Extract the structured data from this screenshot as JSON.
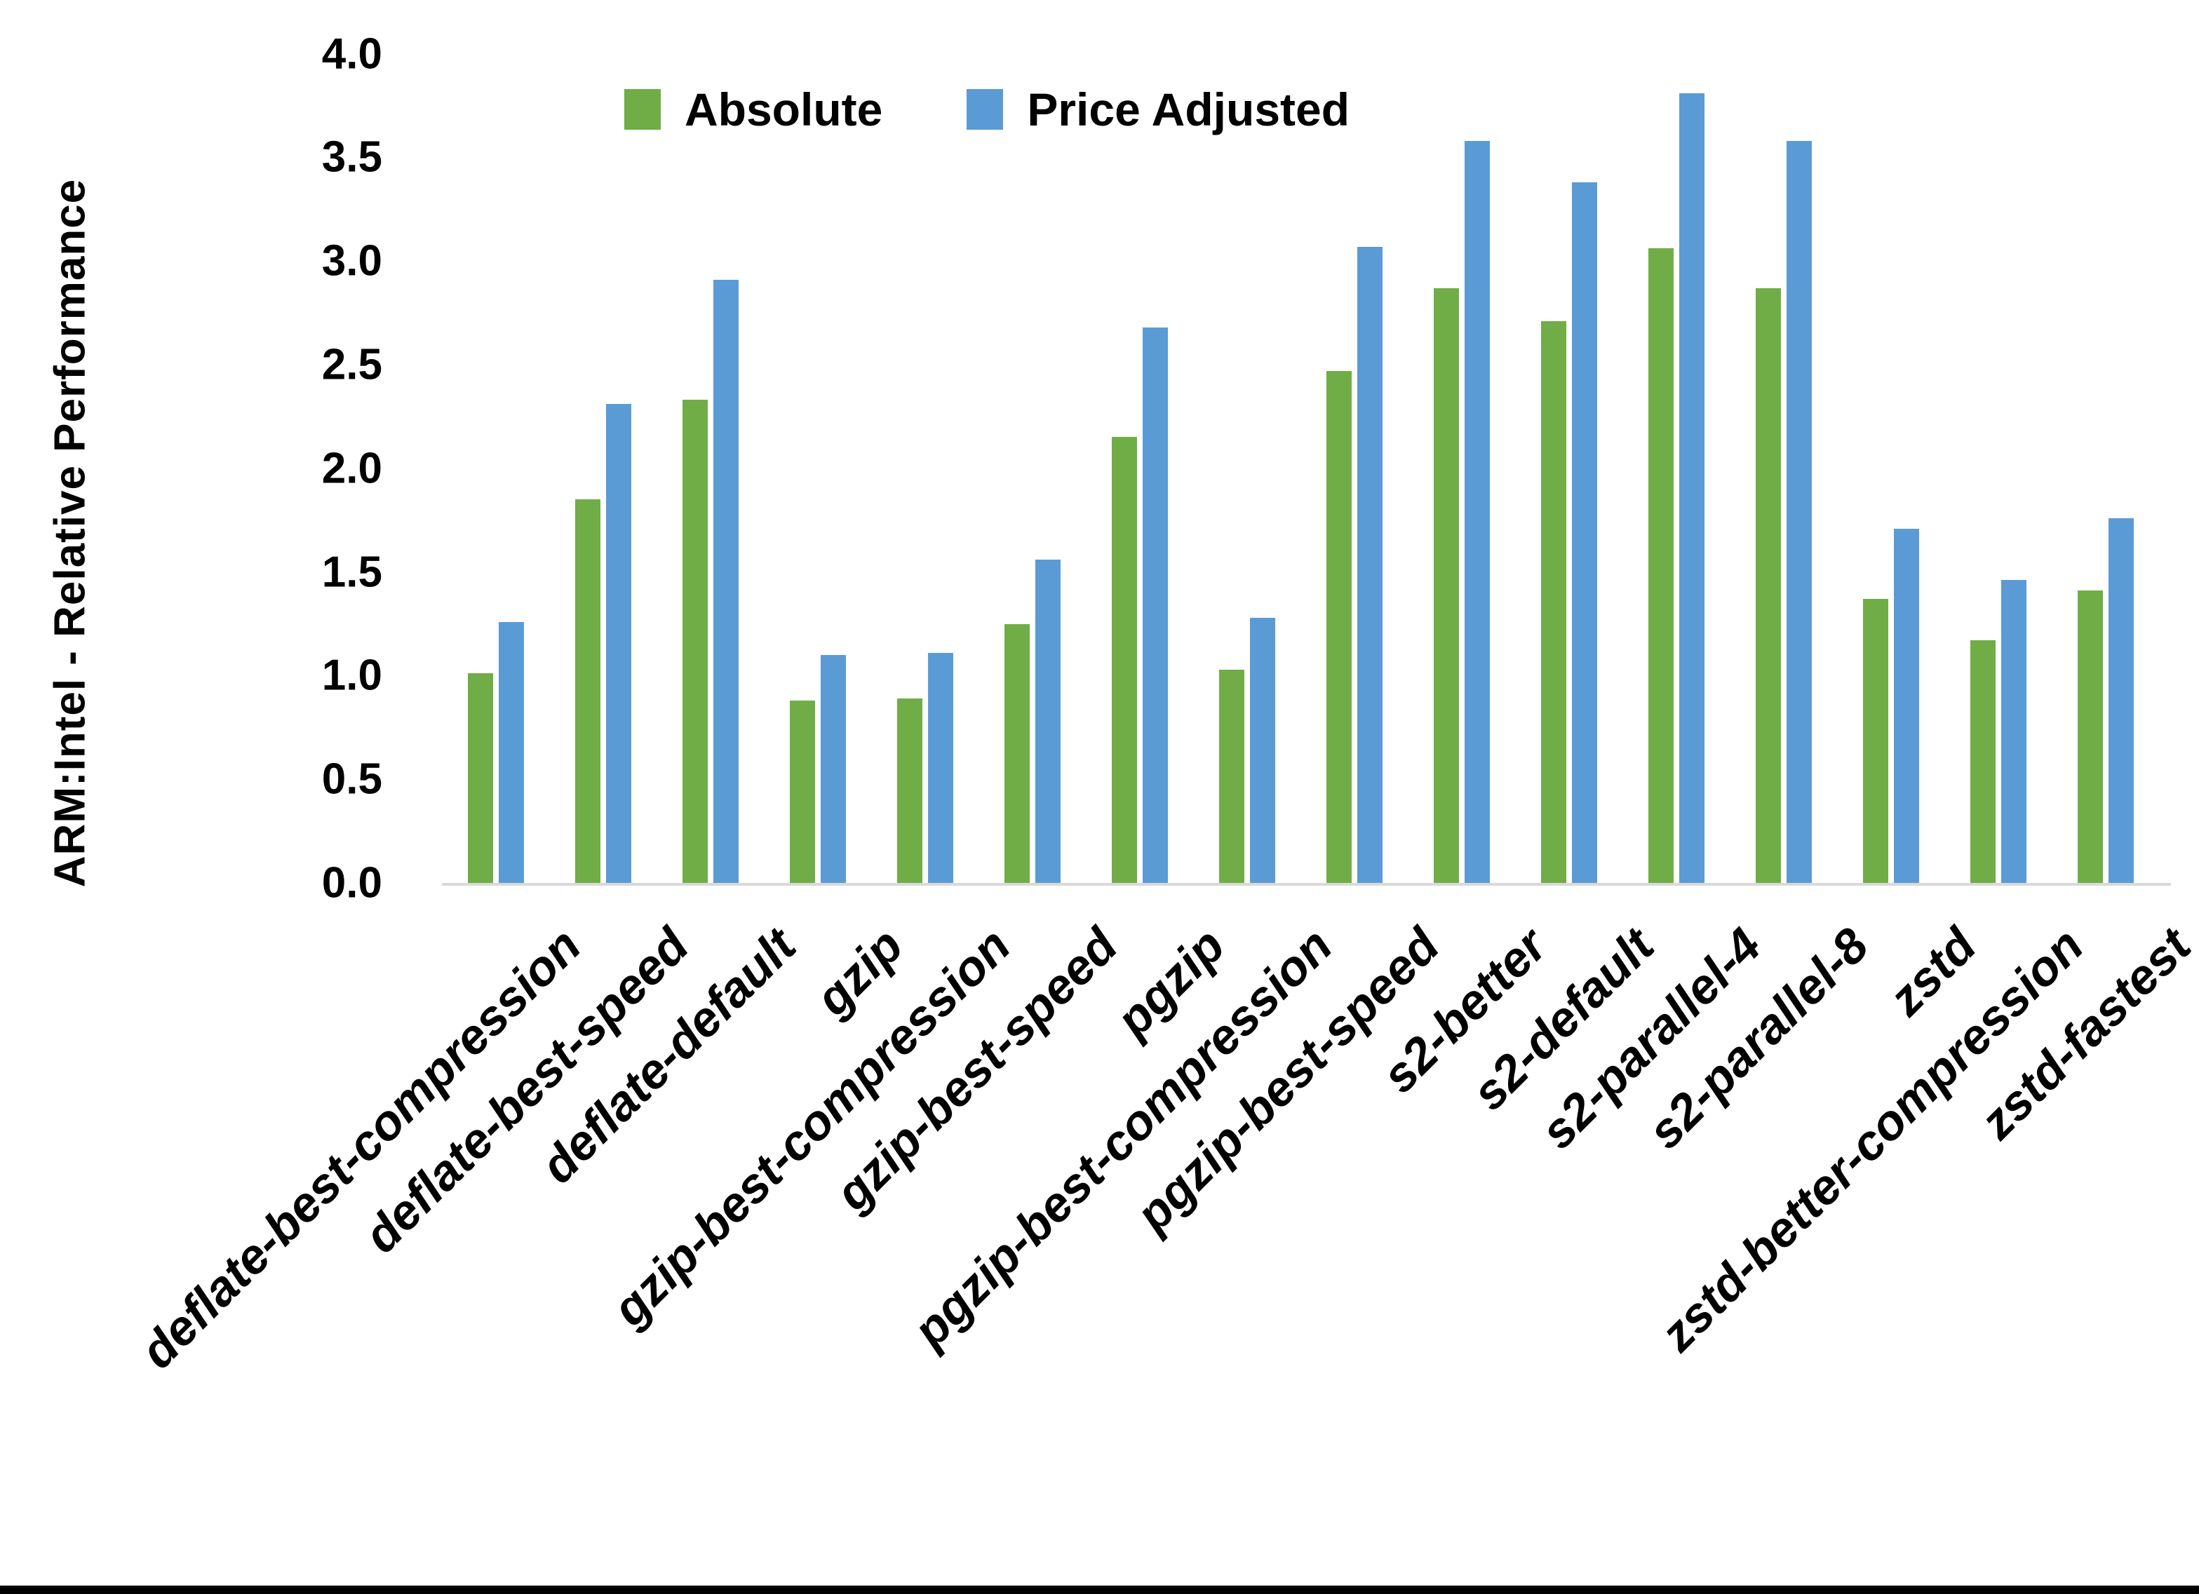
{
  "chart_data": {
    "type": "bar",
    "title": "",
    "xlabel": "",
    "ylabel": "ARM:Intel - Relative Performance",
    "ylim": [
      0.0,
      4.0
    ],
    "y_ticks": [
      "0.0",
      "0.5",
      "1.0",
      "1.5",
      "2.0",
      "2.5",
      "3.0",
      "3.5",
      "4.0"
    ],
    "grid": false,
    "legend_position": "top-center",
    "categories": [
      "deflate-best-compression",
      "deflate-best-speed",
      "deflate-default",
      "gzip",
      "gzip-best-compression",
      "gzip-best-speed",
      "pgzip",
      "pgzip-best-compression",
      "pgzip-best-speed",
      "s2-better",
      "s2-default",
      "s2-parallel-4",
      "s2-parallel-8",
      "zstd",
      "zstd-better-compression",
      "zstd-fastest"
    ],
    "series": [
      {
        "name": "Absolute",
        "color": "#70AD47",
        "values": [
          1.01,
          1.85,
          2.33,
          0.88,
          0.89,
          1.25,
          2.15,
          1.03,
          2.47,
          2.87,
          2.71,
          3.06,
          2.87,
          1.37,
          1.17,
          1.41
        ]
      },
      {
        "name": "Price Adjusted",
        "color": "#5B9BD5",
        "values": [
          1.26,
          2.31,
          2.91,
          1.1,
          1.11,
          1.56,
          2.68,
          1.28,
          3.07,
          3.58,
          3.38,
          3.81,
          3.58,
          1.71,
          1.46,
          1.76
        ]
      }
    ],
    "axis_line_color": "#D9D9D9",
    "text_color": "#000000"
  }
}
